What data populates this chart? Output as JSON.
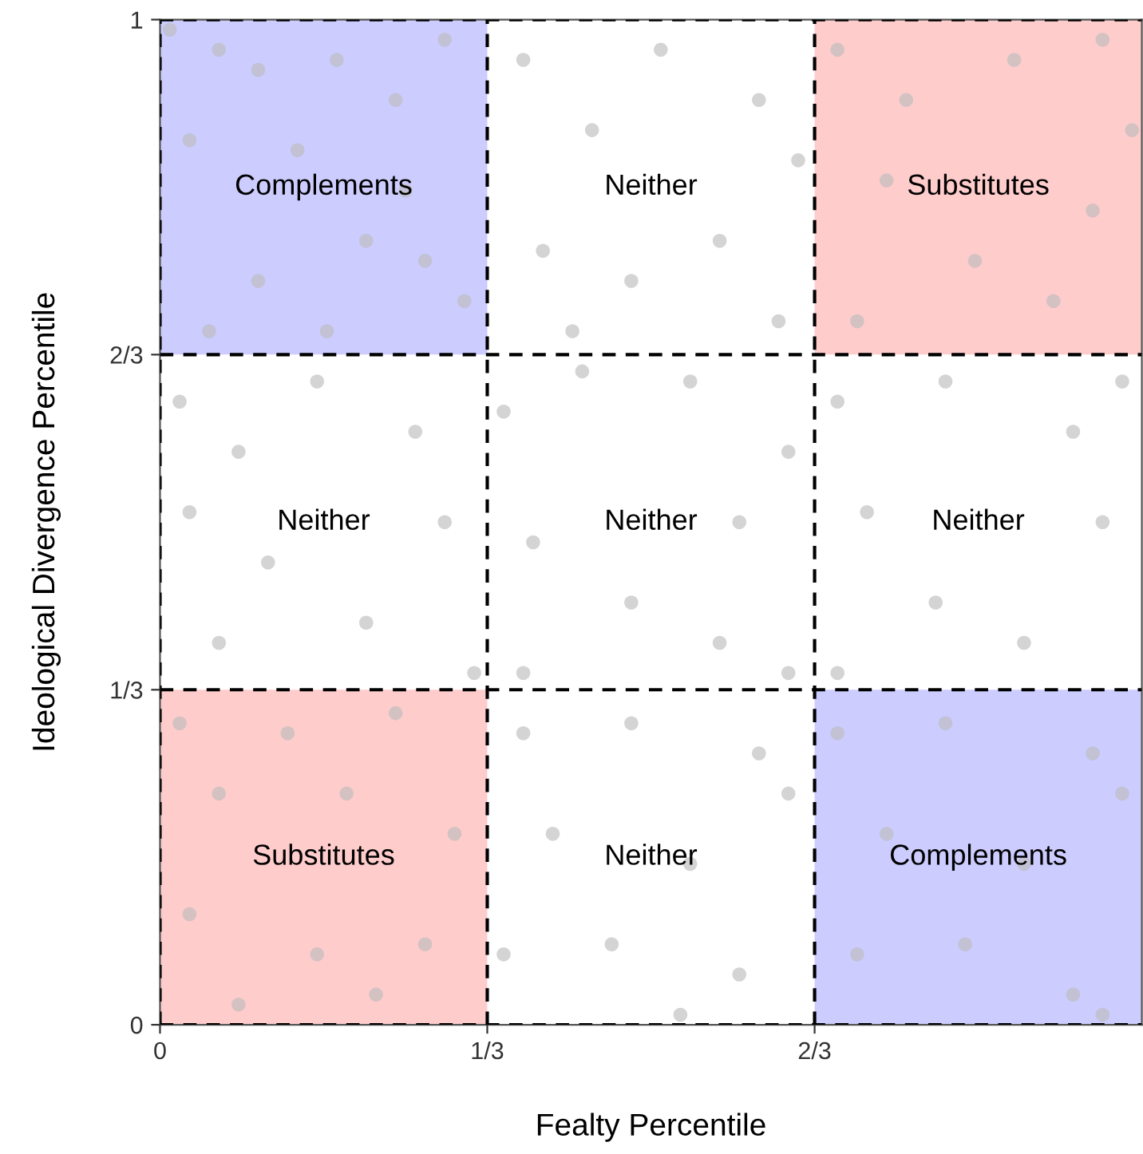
{
  "chart_data": {
    "type": "scatter",
    "xlabel": "Fealty Percentile",
    "ylabel": "Ideological Divergence Percentile",
    "xlim": [
      0,
      1
    ],
    "ylim": [
      0,
      1
    ],
    "xticks": [
      0,
      {
        "value": 0.3333,
        "label": "1/3"
      },
      {
        "value": 0.6667,
        "label": "2/3"
      }
    ],
    "yticks": [
      0,
      {
        "value": 0.3333,
        "label": "1/3"
      },
      {
        "value": 0.6667,
        "label": "2/3"
      },
      1
    ],
    "marker": "circle",
    "legend": false,
    "series": [
      {
        "color": "#bdbdbd",
        "x": [
          0.01,
          0.06,
          0.1,
          0.18,
          0.24,
          0.29,
          0.03,
          0.14,
          0.21,
          0.1,
          0.27,
          0.31,
          0.05,
          0.17,
          0.25,
          0.37,
          0.44,
          0.51,
          0.61,
          0.65,
          0.39,
          0.48,
          0.57,
          0.63,
          0.42,
          0.69,
          0.76,
          0.87,
          0.96,
          0.74,
          0.95,
          0.83,
          0.71,
          0.91,
          0.99,
          0.02,
          0.08,
          0.16,
          0.26,
          0.03,
          0.11,
          0.29,
          0.06,
          0.21,
          0.32,
          0.35,
          0.43,
          0.54,
          0.64,
          0.38,
          0.59,
          0.48,
          0.57,
          0.37,
          0.64,
          0.69,
          0.8,
          0.93,
          0.72,
          0.96,
          0.79,
          0.88,
          0.69,
          0.98,
          0.02,
          0.13,
          0.24,
          0.06,
          0.19,
          0.3,
          0.03,
          0.16,
          0.27,
          0.08,
          0.22,
          0.37,
          0.48,
          0.61,
          0.4,
          0.54,
          0.64,
          0.35,
          0.46,
          0.59,
          0.53,
          0.69,
          0.8,
          0.95,
          0.74,
          0.88,
          0.98,
          0.71,
          0.82,
          0.93,
          0.96
        ],
        "values": [
          0.99,
          0.97,
          0.95,
          0.96,
          0.92,
          0.98,
          0.88,
          0.87,
          0.78,
          0.74,
          0.76,
          0.72,
          0.69,
          0.69,
          0.83,
          0.96,
          0.89,
          0.97,
          0.92,
          0.86,
          0.77,
          0.74,
          0.78,
          0.7,
          0.69,
          0.97,
          0.92,
          0.96,
          0.98,
          0.84,
          0.81,
          0.76,
          0.7,
          0.72,
          0.89,
          0.62,
          0.57,
          0.64,
          0.59,
          0.51,
          0.46,
          0.5,
          0.38,
          0.4,
          0.35,
          0.61,
          0.65,
          0.64,
          0.57,
          0.48,
          0.5,
          0.42,
          0.38,
          0.35,
          0.35,
          0.62,
          0.64,
          0.59,
          0.51,
          0.5,
          0.42,
          0.38,
          0.35,
          0.64,
          0.3,
          0.29,
          0.31,
          0.23,
          0.23,
          0.19,
          0.11,
          0.07,
          0.08,
          0.02,
          0.03,
          0.29,
          0.3,
          0.27,
          0.19,
          0.16,
          0.23,
          0.07,
          0.08,
          0.05,
          0.01,
          0.29,
          0.3,
          0.27,
          0.19,
          0.16,
          0.23,
          0.07,
          0.08,
          0.03,
          0.01
        ]
      }
    ],
    "grid": true,
    "annotations": [
      "Complements",
      "Neither",
      "Substitutes",
      "Neither",
      "Neither",
      "Neither",
      "Substitutes",
      "Neither",
      "Complements"
    ]
  }
}
